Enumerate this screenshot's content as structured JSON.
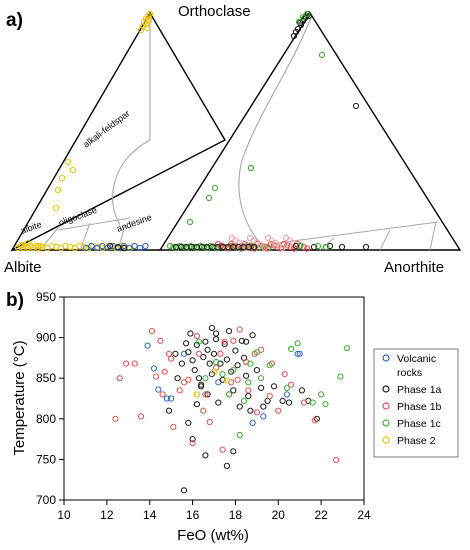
{
  "panels": {
    "a": "a)",
    "b": "b)"
  },
  "ternary": {
    "vertices": {
      "top": "Orthoclase",
      "left": "Albite",
      "right": "Anorthite"
    },
    "fields": [
      "alkali-feldspar",
      "albite",
      "oligoclase",
      "andesine"
    ],
    "colors": {
      "frame": "#000000",
      "boundary": "#a8a8a8"
    }
  },
  "legend": [
    {
      "label": "Volcanic",
      "label2": "rocks",
      "color": "#2f66c4"
    },
    {
      "label": "Phase 1a",
      "color": "#1a1a1a"
    },
    {
      "label": "Phase 1b",
      "color": "#e05050"
    },
    {
      "label": "Phase 1c",
      "color": "#3cae2a"
    },
    {
      "label": "Phase 2",
      "color": "#e8c400"
    }
  ],
  "chart_data": {
    "type": "scatter",
    "xlabel": "FeO (wt%)",
    "ylabel": "Temperature (°C)",
    "xlim": [
      10,
      24
    ],
    "ylim": [
      700,
      950
    ],
    "xticks": [
      10,
      12,
      14,
      16,
      18,
      20,
      22,
      24
    ],
    "yticks": [
      700,
      750,
      800,
      850,
      900,
      950
    ],
    "series": [
      {
        "name": "Volcanic rocks",
        "color": "#2f66c4",
        "points": [
          [
            13.9,
            890
          ],
          [
            14.2,
            862
          ],
          [
            14.4,
            836
          ],
          [
            14.8,
            825
          ],
          [
            15.0,
            825
          ],
          [
            15.6,
            880
          ],
          [
            17.2,
            845
          ],
          [
            18.8,
            795
          ],
          [
            19.3,
            803
          ],
          [
            20.4,
            830
          ],
          [
            21.0,
            880
          ],
          [
            20.9,
            880
          ]
        ]
      },
      {
        "name": "Phase 1a",
        "color": "#1a1a1a",
        "points": [
          [
            15.2,
            880
          ],
          [
            15.5,
            868
          ],
          [
            15.7,
            893
          ],
          [
            15.8,
            882
          ],
          [
            15.9,
            905
          ],
          [
            16.0,
            872
          ],
          [
            16.1,
            860
          ],
          [
            16.2,
            891
          ],
          [
            16.3,
            850
          ],
          [
            16.4,
            842
          ],
          [
            16.5,
            876
          ],
          [
            16.6,
            895
          ],
          [
            16.7,
            830
          ],
          [
            16.8,
            868
          ],
          [
            16.9,
            855
          ],
          [
            17.0,
            880
          ],
          [
            17.1,
            905
          ],
          [
            17.2,
            820
          ],
          [
            17.3,
            868
          ],
          [
            17.4,
            848
          ],
          [
            17.5,
            892
          ],
          [
            17.6,
            873
          ],
          [
            17.7,
            908
          ],
          [
            17.8,
            858
          ],
          [
            17.9,
            835
          ],
          [
            18.0,
            884
          ],
          [
            18.1,
            866
          ],
          [
            18.2,
            815
          ],
          [
            18.3,
            896
          ],
          [
            18.4,
            875
          ],
          [
            18.5,
            853
          ],
          [
            18.6,
            828
          ],
          [
            18.8,
            903
          ],
          [
            19.0,
            860
          ],
          [
            19.2,
            838
          ],
          [
            19.5,
            822
          ],
          [
            19.8,
            840
          ],
          [
            20.2,
            822
          ],
          [
            20.5,
            820
          ],
          [
            21.1,
            835
          ],
          [
            21.4,
            822
          ],
          [
            21.8,
            800
          ],
          [
            15.6,
            712
          ],
          [
            16.6,
            755
          ],
          [
            17.6,
            742
          ],
          [
            15.8,
            795
          ],
          [
            16.0,
            775
          ],
          [
            16.4,
            840
          ],
          [
            15.3,
            850
          ],
          [
            14.9,
            810
          ],
          [
            18.7,
            810
          ],
          [
            19.3,
            815
          ],
          [
            17.9,
            760
          ],
          [
            16.2,
            818
          ],
          [
            17.1,
            898
          ],
          [
            18.5,
            895
          ],
          [
            16.7,
            885
          ],
          [
            16.9,
            912
          ]
        ]
      },
      {
        "name": "Phase 1b",
        "color": "#e05050",
        "points": [
          [
            12.4,
            800
          ],
          [
            12.6,
            850
          ],
          [
            12.9,
            868
          ],
          [
            13.3,
            868
          ],
          [
            13.6,
            803
          ],
          [
            14.1,
            908
          ],
          [
            14.3,
            852
          ],
          [
            14.5,
            896
          ],
          [
            14.7,
            858
          ],
          [
            14.9,
            880
          ],
          [
            15.0,
            874
          ],
          [
            15.4,
            835
          ],
          [
            15.8,
            848
          ],
          [
            16.2,
            902
          ],
          [
            16.5,
            810
          ],
          [
            16.8,
            796
          ],
          [
            17.1,
            863
          ],
          [
            17.3,
            880
          ],
          [
            17.5,
            895
          ],
          [
            17.8,
            845
          ],
          [
            18.2,
            910
          ],
          [
            18.5,
            870
          ],
          [
            18.9,
            880
          ],
          [
            19.2,
            885
          ],
          [
            19.7,
            868
          ],
          [
            20.3,
            855
          ],
          [
            20.6,
            842
          ],
          [
            21.2,
            820
          ],
          [
            21.7,
            798
          ],
          [
            22.7,
            749
          ],
          [
            16.0,
            770
          ],
          [
            17.4,
            762
          ],
          [
            16.3,
            880
          ],
          [
            18.6,
            835
          ],
          [
            19.6,
            828
          ],
          [
            15.1,
            790
          ],
          [
            16.6,
            830
          ],
          [
            17.7,
            830
          ],
          [
            18.1,
            848
          ],
          [
            19.0,
            808
          ],
          [
            15.6,
            845
          ],
          [
            14.6,
            830
          ],
          [
            20.0,
            810
          ],
          [
            17.9,
            896
          ]
        ]
      },
      {
        "name": "Phase 1c",
        "color": "#3cae2a",
        "points": [
          [
            23.2,
            887
          ],
          [
            22.2,
            818
          ],
          [
            22.0,
            830
          ],
          [
            20.9,
            893
          ],
          [
            20.6,
            886
          ],
          [
            20.4,
            838
          ],
          [
            19.6,
            866
          ],
          [
            19.2,
            850
          ],
          [
            18.6,
            845
          ],
          [
            17.9,
            860
          ],
          [
            17.4,
            855
          ],
          [
            17.1,
            870
          ],
          [
            16.6,
            850
          ],
          [
            16.3,
            895
          ],
          [
            18.2,
            780
          ],
          [
            18.4,
            822
          ],
          [
            17.7,
            830
          ],
          [
            21.6,
            820
          ],
          [
            22.9,
            852
          ],
          [
            19.0,
            882
          ],
          [
            18.7,
            868
          ]
        ]
      },
      {
        "name": "Phase 2",
        "color": "#e8c400",
        "points": [
          [
            16.2,
            830
          ],
          [
            17.0,
            858
          ],
          [
            17.6,
            847
          ]
        ]
      }
    ]
  }
}
